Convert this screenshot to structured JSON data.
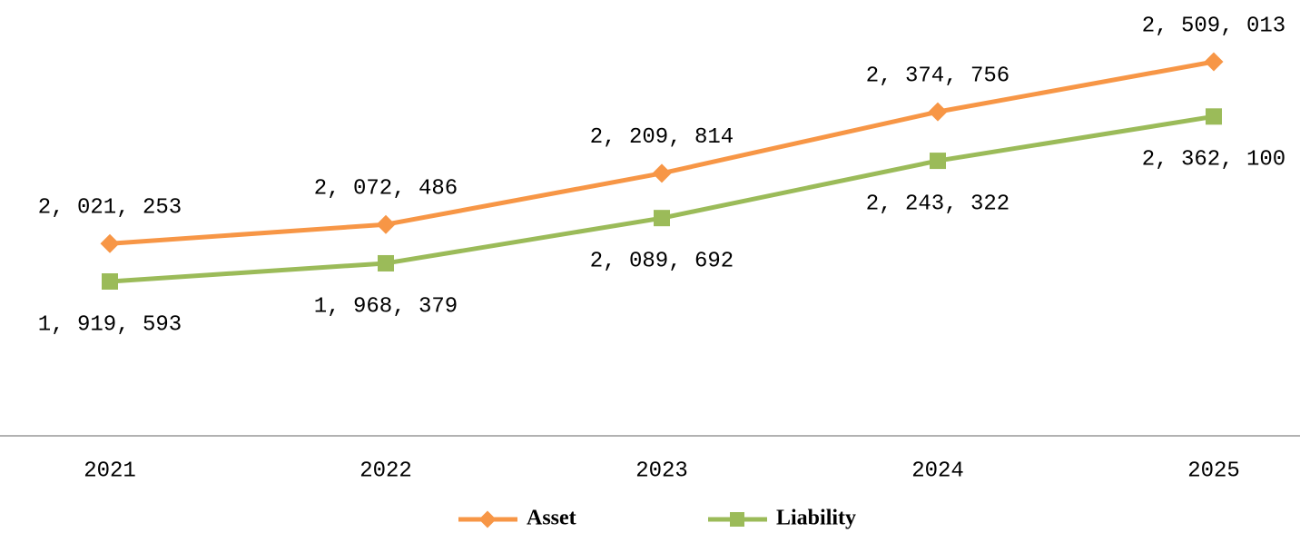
{
  "chart_data": {
    "type": "line",
    "categories": [
      "2021",
      "2022",
      "2023",
      "2024",
      "2025"
    ],
    "series": [
      {
        "name": "Asset",
        "color": "#f79646",
        "marker": "diamond",
        "values": [
          2021253,
          2072486,
          2209814,
          2374756,
          2509013
        ],
        "value_labels": [
          "2, 021, 253",
          "2, 072, 486",
          "2, 209, 814",
          "2, 374, 756",
          "2, 509, 013"
        ]
      },
      {
        "name": "Liability",
        "color": "#9bbb59",
        "marker": "square",
        "values": [
          1919593,
          1968379,
          2089692,
          2243322,
          2362100
        ],
        "value_labels": [
          "1, 919, 593",
          "1, 968, 379",
          "2, 089, 692",
          "2, 243, 322",
          "2, 362, 100"
        ]
      }
    ],
    "legend": "bottom"
  }
}
